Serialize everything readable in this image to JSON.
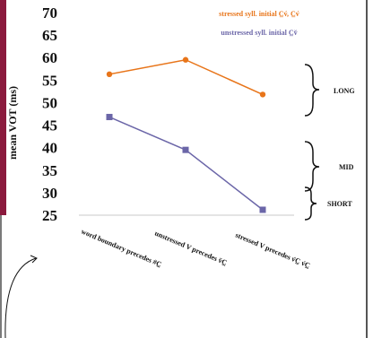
{
  "chart_data": {
    "type": "line",
    "ylabel": "mean VOT (ms)",
    "ylim": [
      25,
      70
    ],
    "yticks": [
      25,
      30,
      35,
      40,
      45,
      50,
      55,
      60,
      65,
      70
    ],
    "categories": [
      "word boundary precedes #C̲",
      "unstressed V precedes v̆C̲",
      "stressed V precedes v́C̲ v́C̲"
    ],
    "series": [
      {
        "name": "stressed syll. initial C̲v́, C̲v́",
        "values": [
          56.3,
          59.5,
          51.8
        ],
        "color": "#e8751a"
      },
      {
        "name": "unstressed syll. initial C̲v̆",
        "values": [
          46.8,
          39.5,
          26.2
        ],
        "color": "#6b66a8"
      }
    ],
    "annotations": [
      "LONG",
      "MID",
      "SHORT"
    ],
    "grid": false,
    "legend_position": "top-right"
  }
}
